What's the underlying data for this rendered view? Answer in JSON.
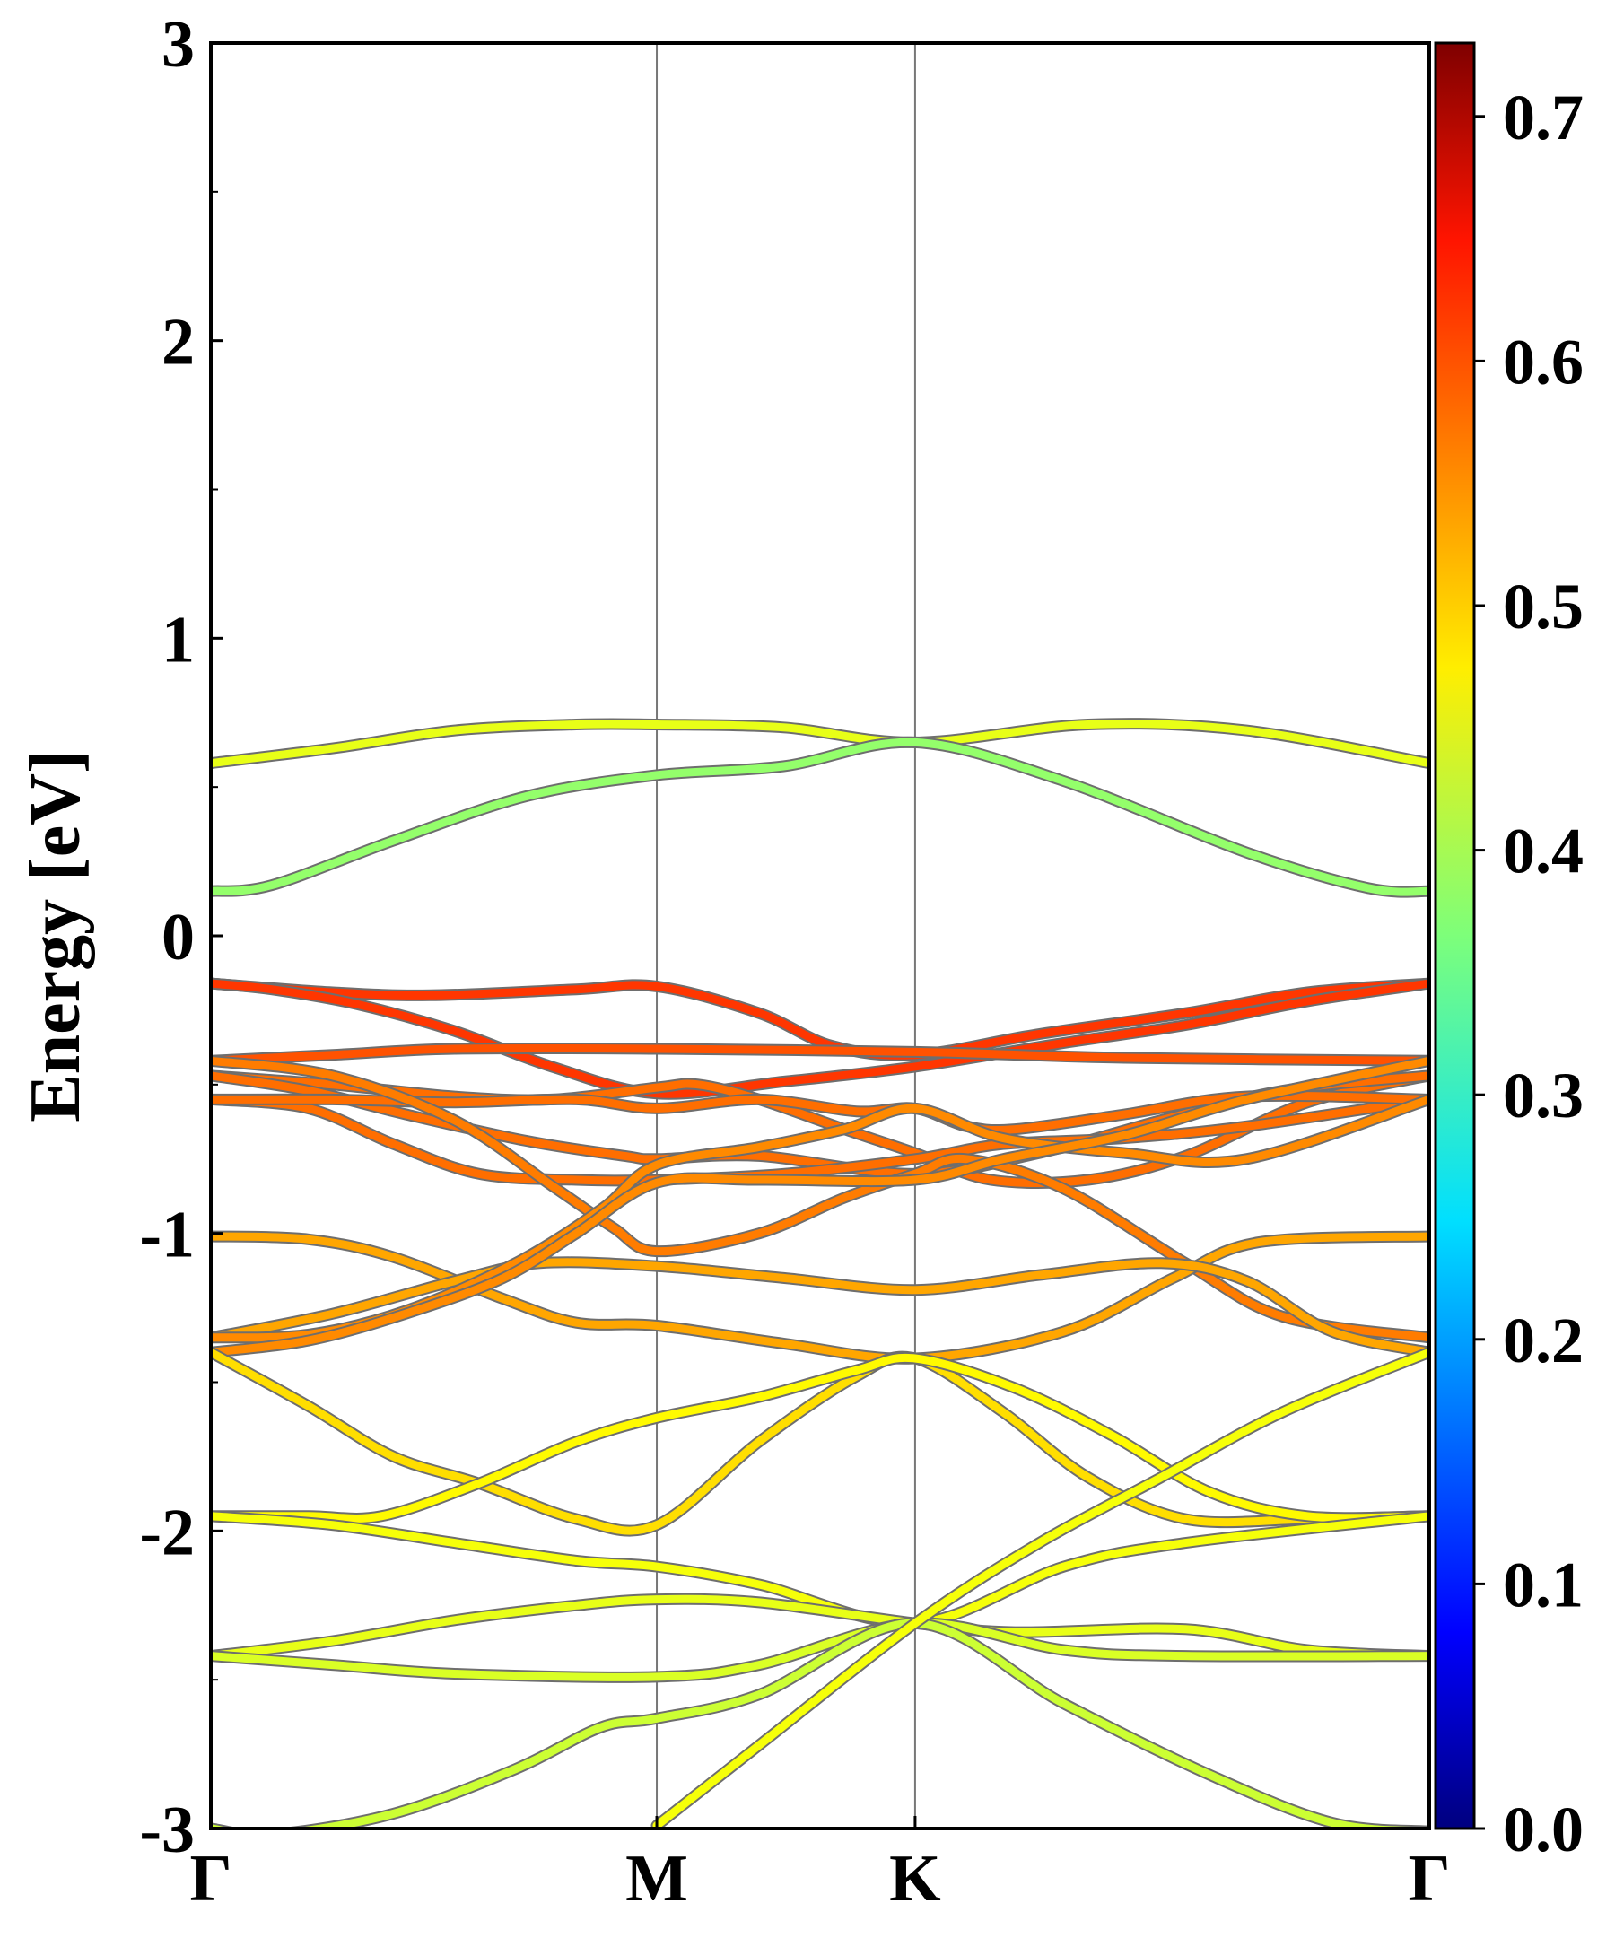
{
  "chart_data": {
    "type": "line",
    "title": "",
    "ylabel": "Energy [eV]",
    "xlabel": "",
    "ylim": [
      -3,
      3
    ],
    "yticks": [
      -3,
      -2,
      -1,
      0,
      1,
      2,
      3
    ],
    "ytick_labels": [
      "-3",
      "-2",
      "-1",
      "0",
      "1",
      "2",
      "3"
    ],
    "kpath": [
      {
        "label": "Γ",
        "x": 0.0
      },
      {
        "label": "M",
        "x": 0.366
      },
      {
        "label": "K",
        "x": 0.578
      },
      {
        "label": "Γ",
        "x": 1.0
      }
    ],
    "grid": "vertical lines at high-symmetry points",
    "colorbar": {
      "colormap": "jet",
      "range": [
        0.0,
        0.73
      ],
      "ticks": [
        0.0,
        0.1,
        0.2,
        0.3,
        0.4,
        0.5,
        0.6,
        0.7
      ],
      "tick_labels": [
        "0.0",
        "0.1",
        "0.2",
        "0.3",
        "0.4",
        "0.5",
        "0.6",
        "0.7"
      ]
    },
    "series": [
      {
        "points": [
          [
            0,
            0.58
          ],
          [
            0.1,
            0.63
          ],
          [
            0.2,
            0.69
          ],
          [
            0.3,
            0.71
          ],
          [
            0.366,
            0.71
          ],
          [
            0.47,
            0.7
          ],
          [
            0.578,
            0.65
          ],
          [
            0.72,
            0.71
          ],
          [
            0.85,
            0.69
          ],
          [
            1.0,
            0.58
          ]
        ],
        "weight": 0.44
      },
      {
        "points": [
          [
            0,
            0.15
          ],
          [
            0.05,
            0.17
          ],
          [
            0.15,
            0.32
          ],
          [
            0.26,
            0.47
          ],
          [
            0.366,
            0.54
          ],
          [
            0.47,
            0.57
          ],
          [
            0.578,
            0.65
          ],
          [
            0.7,
            0.52
          ],
          [
            0.85,
            0.28
          ],
          [
            0.95,
            0.16
          ],
          [
            1.0,
            0.15
          ]
        ],
        "weight": 0.38
      },
      {
        "points": [
          [
            0,
            -0.16
          ],
          [
            0.1,
            -0.19
          ],
          [
            0.18,
            -0.2
          ],
          [
            0.3,
            -0.18
          ],
          [
            0.366,
            -0.17
          ],
          [
            0.45,
            -0.26
          ],
          [
            0.51,
            -0.37
          ],
          [
            0.578,
            -0.4
          ],
          [
            0.68,
            -0.33
          ],
          [
            0.8,
            -0.26
          ],
          [
            0.9,
            -0.19
          ],
          [
            1.0,
            -0.16
          ]
        ],
        "weight": 0.6
      },
      {
        "points": [
          [
            0,
            -0.16
          ],
          [
            0.05,
            -0.18
          ],
          [
            0.12,
            -0.23
          ],
          [
            0.2,
            -0.32
          ],
          [
            0.28,
            -0.44
          ],
          [
            0.366,
            -0.53
          ],
          [
            0.47,
            -0.49
          ],
          [
            0.578,
            -0.44
          ],
          [
            0.7,
            -0.36
          ],
          [
            0.8,
            -0.3
          ],
          [
            0.9,
            -0.22
          ],
          [
            1.0,
            -0.16
          ]
        ],
        "weight": 0.6
      },
      {
        "points": [
          [
            0,
            -0.42
          ],
          [
            0.1,
            -0.4
          ],
          [
            0.2,
            -0.38
          ],
          [
            0.366,
            -0.38
          ],
          [
            0.578,
            -0.39
          ],
          [
            0.75,
            -0.41
          ],
          [
            1.0,
            -0.42
          ]
        ],
        "weight": 0.58
      },
      {
        "points": [
          [
            0,
            -0.47
          ],
          [
            0.1,
            -0.5
          ],
          [
            0.2,
            -0.54
          ],
          [
            0.28,
            -0.55
          ],
          [
            0.366,
            -0.51
          ],
          [
            0.4,
            -0.5
          ],
          [
            0.45,
            -0.55
          ],
          [
            0.52,
            -0.65
          ],
          [
            0.578,
            -0.73
          ],
          [
            0.64,
            -0.82
          ],
          [
            0.72,
            -0.82
          ],
          [
            0.8,
            -0.74
          ],
          [
            0.9,
            -0.56
          ],
          [
            1.0,
            -0.47
          ]
        ],
        "weight": 0.56
      },
      {
        "points": [
          [
            0,
            -0.47
          ],
          [
            0.08,
            -0.52
          ],
          [
            0.16,
            -0.6
          ],
          [
            0.26,
            -0.69
          ],
          [
            0.34,
            -0.74
          ],
          [
            0.366,
            -0.75
          ],
          [
            0.45,
            -0.74
          ],
          [
            0.578,
            -0.8
          ],
          [
            0.68,
            -0.73
          ],
          [
            0.78,
            -0.62
          ],
          [
            0.88,
            -0.52
          ],
          [
            1.0,
            -0.47
          ]
        ],
        "weight": 0.56
      },
      {
        "points": [
          [
            0,
            -0.55
          ],
          [
            0.08,
            -0.58
          ],
          [
            0.15,
            -0.7
          ],
          [
            0.22,
            -0.8
          ],
          [
            0.3,
            -0.82
          ],
          [
            0.366,
            -0.82
          ],
          [
            0.47,
            -0.8
          ],
          [
            0.578,
            -0.75
          ],
          [
            0.65,
            -0.7
          ],
          [
            0.75,
            -0.68
          ],
          [
            0.85,
            -0.64
          ],
          [
            1.0,
            -0.55
          ]
        ],
        "weight": 0.56
      },
      {
        "points": [
          [
            0,
            -0.55
          ],
          [
            0.1,
            -0.55
          ],
          [
            0.2,
            -0.56
          ],
          [
            0.3,
            -0.55
          ],
          [
            0.366,
            -0.58
          ],
          [
            0.45,
            -0.55
          ],
          [
            0.53,
            -0.59
          ],
          [
            0.578,
            -0.58
          ],
          [
            0.62,
            -0.64
          ],
          [
            0.66,
            -0.65
          ],
          [
            0.75,
            -0.6
          ],
          [
            0.85,
            -0.54
          ],
          [
            1.0,
            -0.55
          ]
        ],
        "weight": 0.56
      },
      {
        "points": [
          [
            0,
            -0.42
          ],
          [
            0.1,
            -0.47
          ],
          [
            0.2,
            -0.62
          ],
          [
            0.28,
            -0.84
          ],
          [
            0.33,
            -0.98
          ],
          [
            0.366,
            -1.06
          ],
          [
            0.45,
            -1.0
          ],
          [
            0.52,
            -0.88
          ],
          [
            0.578,
            -0.8
          ],
          [
            0.62,
            -0.75
          ],
          [
            0.7,
            -0.85
          ],
          [
            0.8,
            -1.1
          ],
          [
            0.88,
            -1.28
          ],
          [
            1.0,
            -1.35
          ]
        ],
        "weight": 0.55
      },
      {
        "points": [
          [
            0,
            -1.01
          ],
          [
            0.08,
            -1.02
          ],
          [
            0.15,
            -1.08
          ],
          [
            0.24,
            -1.22
          ],
          [
            0.3,
            -1.3
          ],
          [
            0.366,
            -1.31
          ],
          [
            0.47,
            -1.37
          ],
          [
            0.578,
            -1.42
          ],
          [
            0.7,
            -1.33
          ],
          [
            0.79,
            -1.15
          ],
          [
            0.86,
            -1.03
          ],
          [
            1.0,
            -1.01
          ]
        ],
        "weight": 0.52
      },
      {
        "points": [
          [
            0,
            -1.35
          ],
          [
            0.1,
            -1.27
          ],
          [
            0.2,
            -1.16
          ],
          [
            0.27,
            -1.1
          ],
          [
            0.366,
            -1.11
          ],
          [
            0.47,
            -1.15
          ],
          [
            0.578,
            -1.19
          ],
          [
            0.68,
            -1.14
          ],
          [
            0.78,
            -1.1
          ],
          [
            0.85,
            -1.16
          ],
          [
            0.92,
            -1.33
          ],
          [
            1.0,
            -1.4
          ]
        ],
        "weight": 0.52
      },
      {
        "points": [
          [
            0,
            -1.35
          ],
          [
            0.08,
            -1.34
          ],
          [
            0.16,
            -1.26
          ],
          [
            0.25,
            -1.1
          ],
          [
            0.32,
            -0.92
          ],
          [
            0.366,
            -0.77
          ],
          [
            0.45,
            -0.71
          ],
          [
            0.52,
            -0.65
          ],
          [
            0.578,
            -0.58
          ],
          [
            0.65,
            -0.68
          ],
          [
            0.75,
            -0.73
          ],
          [
            0.85,
            -0.75
          ],
          [
            1.0,
            -0.55
          ]
        ],
        "weight": 0.54
      },
      {
        "points": [
          [
            0,
            -1.4
          ],
          [
            0.08,
            -1.36
          ],
          [
            0.16,
            -1.27
          ],
          [
            0.24,
            -1.15
          ],
          [
            0.3,
            -1.0
          ],
          [
            0.366,
            -0.83
          ],
          [
            0.45,
            -0.82
          ],
          [
            0.578,
            -0.82
          ],
          [
            0.65,
            -0.75
          ],
          [
            0.75,
            -0.67
          ],
          [
            0.85,
            -0.55
          ],
          [
            1.0,
            -0.42
          ]
        ],
        "weight": 0.54
      },
      {
        "points": [
          [
            0,
            -1.4
          ],
          [
            0.08,
            -1.58
          ],
          [
            0.15,
            -1.75
          ],
          [
            0.22,
            -1.84
          ],
          [
            0.3,
            -1.96
          ],
          [
            0.366,
            -1.98
          ],
          [
            0.45,
            -1.7
          ],
          [
            0.53,
            -1.48
          ],
          [
            0.578,
            -1.42
          ],
          [
            0.65,
            -1.6
          ],
          [
            0.72,
            -1.82
          ],
          [
            0.8,
            -1.96
          ],
          [
            0.9,
            -1.96
          ],
          [
            1.0,
            -1.95
          ]
        ],
        "weight": 0.48
      },
      {
        "points": [
          [
            0,
            -1.95
          ],
          [
            0.08,
            -1.95
          ],
          [
            0.14,
            -1.95
          ],
          [
            0.22,
            -1.84
          ],
          [
            0.3,
            -1.7
          ],
          [
            0.366,
            -1.62
          ],
          [
            0.45,
            -1.55
          ],
          [
            0.53,
            -1.46
          ],
          [
            0.578,
            -1.42
          ],
          [
            0.66,
            -1.52
          ],
          [
            0.74,
            -1.68
          ],
          [
            0.82,
            -1.87
          ],
          [
            0.9,
            -1.95
          ],
          [
            1.0,
            -1.95
          ]
        ],
        "weight": 0.46
      },
      {
        "points": [
          [
            0,
            -1.95
          ],
          [
            0.1,
            -1.98
          ],
          [
            0.2,
            -2.04
          ],
          [
            0.3,
            -2.1
          ],
          [
            0.366,
            -2.12
          ],
          [
            0.45,
            -2.18
          ],
          [
            0.578,
            -2.31
          ],
          [
            0.7,
            -2.12
          ],
          [
            0.8,
            -2.04
          ],
          [
            1.0,
            -1.95
          ]
        ],
        "weight": 0.45
      },
      {
        "points": [
          [
            0,
            -2.42
          ],
          [
            0.1,
            -2.37
          ],
          [
            0.2,
            -2.3
          ],
          [
            0.3,
            -2.25
          ],
          [
            0.366,
            -2.23
          ],
          [
            0.45,
            -2.24
          ],
          [
            0.578,
            -2.31
          ],
          [
            0.66,
            -2.34
          ],
          [
            0.8,
            -2.33
          ],
          [
            0.9,
            -2.4
          ],
          [
            1.0,
            -2.42
          ]
        ],
        "weight": 0.44
      },
      {
        "points": [
          [
            0,
            -2.42
          ],
          [
            0.1,
            -2.45
          ],
          [
            0.2,
            -2.48
          ],
          [
            0.366,
            -2.49
          ],
          [
            0.45,
            -2.45
          ],
          [
            0.578,
            -2.31
          ],
          [
            0.7,
            -2.4
          ],
          [
            0.8,
            -2.42
          ],
          [
            1.0,
            -2.42
          ]
        ],
        "weight": 0.43
      },
      {
        "points": [
          [
            0,
            -3.0
          ],
          [
            0.05,
            -3.02
          ],
          [
            0.15,
            -2.95
          ],
          [
            0.25,
            -2.8
          ],
          [
            0.32,
            -2.66
          ],
          [
            0.366,
            -2.63
          ],
          [
            0.45,
            -2.55
          ],
          [
            0.578,
            -2.31
          ],
          [
            0.7,
            -2.58
          ],
          [
            0.82,
            -2.82
          ],
          [
            0.92,
            -2.98
          ],
          [
            1.0,
            -3.01
          ]
        ],
        "weight": 0.42
      },
      {
        "points": [
          [
            0.366,
            -2.99
          ],
          [
            0.45,
            -2.72
          ],
          [
            0.578,
            -2.31
          ],
          [
            0.68,
            -2.04
          ],
          [
            0.78,
            -1.82
          ],
          [
            0.88,
            -1.6
          ],
          [
            1.0,
            -1.4
          ]
        ],
        "weight": 0.45
      }
    ]
  }
}
